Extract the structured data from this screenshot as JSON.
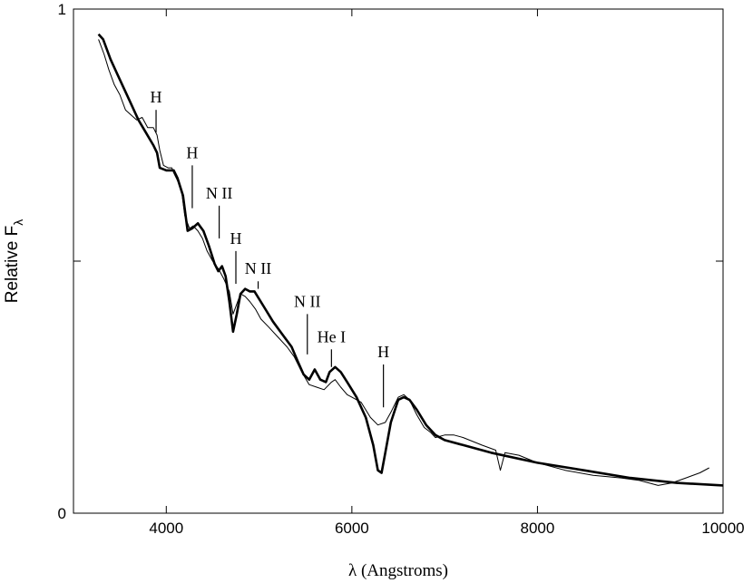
{
  "chart_data": {
    "type": "line",
    "title": "",
    "xlabel": "λ (Angstroms)",
    "ylabel": "Relative F",
    "ylabel_subscript": "λ",
    "xlim": [
      3000,
      10000
    ],
    "ylim": [
      0,
      1
    ],
    "x_ticks": [
      4000,
      6000,
      8000,
      10000
    ],
    "x_tick_labels": [
      "4000",
      "6000",
      "8000",
      "10000"
    ],
    "y_tick_labels": [
      {
        "value": 0,
        "label": "0"
      },
      {
        "value": 1,
        "label": "1"
      }
    ],
    "y_unlabeled_ticks": [
      0.5
    ],
    "grid": false,
    "series": [
      {
        "style": "thin",
        "color": "#000000",
        "points": [
          [
            3270,
            0.94
          ],
          [
            3330,
            0.91
          ],
          [
            3380,
            0.88
          ],
          [
            3440,
            0.85
          ],
          [
            3500,
            0.83
          ],
          [
            3560,
            0.8
          ],
          [
            3620,
            0.79
          ],
          [
            3680,
            0.78
          ],
          [
            3740,
            0.785
          ],
          [
            3800,
            0.765
          ],
          [
            3860,
            0.765
          ],
          [
            3900,
            0.75
          ],
          [
            3930,
            0.72
          ],
          [
            3970,
            0.69
          ],
          [
            4020,
            0.685
          ],
          [
            4060,
            0.685
          ],
          [
            4080,
            0.675
          ],
          [
            4120,
            0.66
          ],
          [
            4160,
            0.645
          ],
          [
            4200,
            0.59
          ],
          [
            4250,
            0.565
          ],
          [
            4290,
            0.57
          ],
          [
            4340,
            0.56
          ],
          [
            4390,
            0.545
          ],
          [
            4440,
            0.52
          ],
          [
            4500,
            0.5
          ],
          [
            4560,
            0.485
          ],
          [
            4620,
            0.465
          ],
          [
            4680,
            0.44
          ],
          [
            4720,
            0.395
          ],
          [
            4760,
            0.415
          ],
          [
            4800,
            0.435
          ],
          [
            4850,
            0.43
          ],
          [
            4900,
            0.42
          ],
          [
            4960,
            0.405
          ],
          [
            5020,
            0.385
          ],
          [
            5100,
            0.37
          ],
          [
            5200,
            0.35
          ],
          [
            5300,
            0.33
          ],
          [
            5380,
            0.31
          ],
          [
            5460,
            0.28
          ],
          [
            5540,
            0.255
          ],
          [
            5620,
            0.25
          ],
          [
            5700,
            0.245
          ],
          [
            5780,
            0.26
          ],
          [
            5820,
            0.265
          ],
          [
            5880,
            0.25
          ],
          [
            5950,
            0.235
          ],
          [
            6000,
            0.23
          ],
          [
            6100,
            0.22
          ],
          [
            6200,
            0.19
          ],
          [
            6280,
            0.175
          ],
          [
            6360,
            0.18
          ],
          [
            6420,
            0.2
          ],
          [
            6500,
            0.23
          ],
          [
            6560,
            0.235
          ],
          [
            6620,
            0.225
          ],
          [
            6700,
            0.195
          ],
          [
            6780,
            0.17
          ],
          [
            6850,
            0.16
          ],
          [
            6900,
            0.15
          ],
          [
            7000,
            0.155
          ],
          [
            7100,
            0.155
          ],
          [
            7200,
            0.15
          ],
          [
            7400,
            0.135
          ],
          [
            7550,
            0.125
          ],
          [
            7600,
            0.085
          ],
          [
            7650,
            0.12
          ],
          [
            7800,
            0.115
          ],
          [
            8000,
            0.1
          ],
          [
            8300,
            0.085
          ],
          [
            8600,
            0.075
          ],
          [
            8900,
            0.07
          ],
          [
            9100,
            0.065
          ],
          [
            9300,
            0.055
          ],
          [
            9450,
            0.06
          ],
          [
            9600,
            0.07
          ],
          [
            9750,
            0.08
          ],
          [
            9850,
            0.09
          ]
        ]
      },
      {
        "style": "thick",
        "color": "#000000",
        "points": [
          [
            3270,
            0.95
          ],
          [
            3320,
            0.94
          ],
          [
            3400,
            0.9
          ],
          [
            3500,
            0.86
          ],
          [
            3600,
            0.82
          ],
          [
            3700,
            0.78
          ],
          [
            3780,
            0.755
          ],
          [
            3860,
            0.73
          ],
          [
            3900,
            0.715
          ],
          [
            3930,
            0.685
          ],
          [
            4000,
            0.68
          ],
          [
            4080,
            0.68
          ],
          [
            4120,
            0.665
          ],
          [
            4180,
            0.63
          ],
          [
            4230,
            0.56
          ],
          [
            4280,
            0.565
          ],
          [
            4340,
            0.575
          ],
          [
            4400,
            0.56
          ],
          [
            4460,
            0.53
          ],
          [
            4520,
            0.495
          ],
          [
            4560,
            0.48
          ],
          [
            4600,
            0.49
          ],
          [
            4640,
            0.47
          ],
          [
            4680,
            0.42
          ],
          [
            4720,
            0.36
          ],
          [
            4760,
            0.395
          ],
          [
            4800,
            0.435
          ],
          [
            4850,
            0.445
          ],
          [
            4900,
            0.44
          ],
          [
            4950,
            0.44
          ],
          [
            5050,
            0.41
          ],
          [
            5150,
            0.38
          ],
          [
            5250,
            0.355
          ],
          [
            5350,
            0.33
          ],
          [
            5420,
            0.3
          ],
          [
            5480,
            0.275
          ],
          [
            5540,
            0.265
          ],
          [
            5600,
            0.285
          ],
          [
            5660,
            0.265
          ],
          [
            5720,
            0.26
          ],
          [
            5760,
            0.28
          ],
          [
            5820,
            0.29
          ],
          [
            5880,
            0.28
          ],
          [
            5950,
            0.26
          ],
          [
            6050,
            0.23
          ],
          [
            6150,
            0.19
          ],
          [
            6230,
            0.135
          ],
          [
            6280,
            0.085
          ],
          [
            6320,
            0.08
          ],
          [
            6360,
            0.12
          ],
          [
            6420,
            0.18
          ],
          [
            6500,
            0.225
          ],
          [
            6560,
            0.23
          ],
          [
            6620,
            0.225
          ],
          [
            6700,
            0.205
          ],
          [
            6800,
            0.175
          ],
          [
            6900,
            0.155
          ],
          [
            7000,
            0.145
          ],
          [
            7200,
            0.135
          ],
          [
            7500,
            0.12
          ],
          [
            8000,
            0.1
          ],
          [
            8500,
            0.085
          ],
          [
            9000,
            0.07
          ],
          [
            9500,
            0.06
          ],
          [
            10000,
            0.055
          ]
        ]
      }
    ],
    "annotations": [
      {
        "text": "H",
        "x": 3890,
        "line_top": 0.8,
        "line_bottom": 0.755
      },
      {
        "text": "H",
        "x": 4280,
        "line_top": 0.69,
        "line_bottom": 0.605
      },
      {
        "text": "N II",
        "x": 4570,
        "line_top": 0.61,
        "line_bottom": 0.545
      },
      {
        "text": "H",
        "x": 4750,
        "line_top": 0.52,
        "line_bottom": 0.455
      },
      {
        "text": "N II",
        "x": 4990,
        "line_top": 0.46,
        "line_bottom": 0.445
      },
      {
        "text": "N II",
        "x": 5520,
        "line_top": 0.395,
        "line_bottom": 0.315
      },
      {
        "text": "He I",
        "x": 5780,
        "line_top": 0.325,
        "line_bottom": 0.29
      },
      {
        "text": "H",
        "x": 6340,
        "line_top": 0.295,
        "line_bottom": 0.21
      }
    ]
  }
}
